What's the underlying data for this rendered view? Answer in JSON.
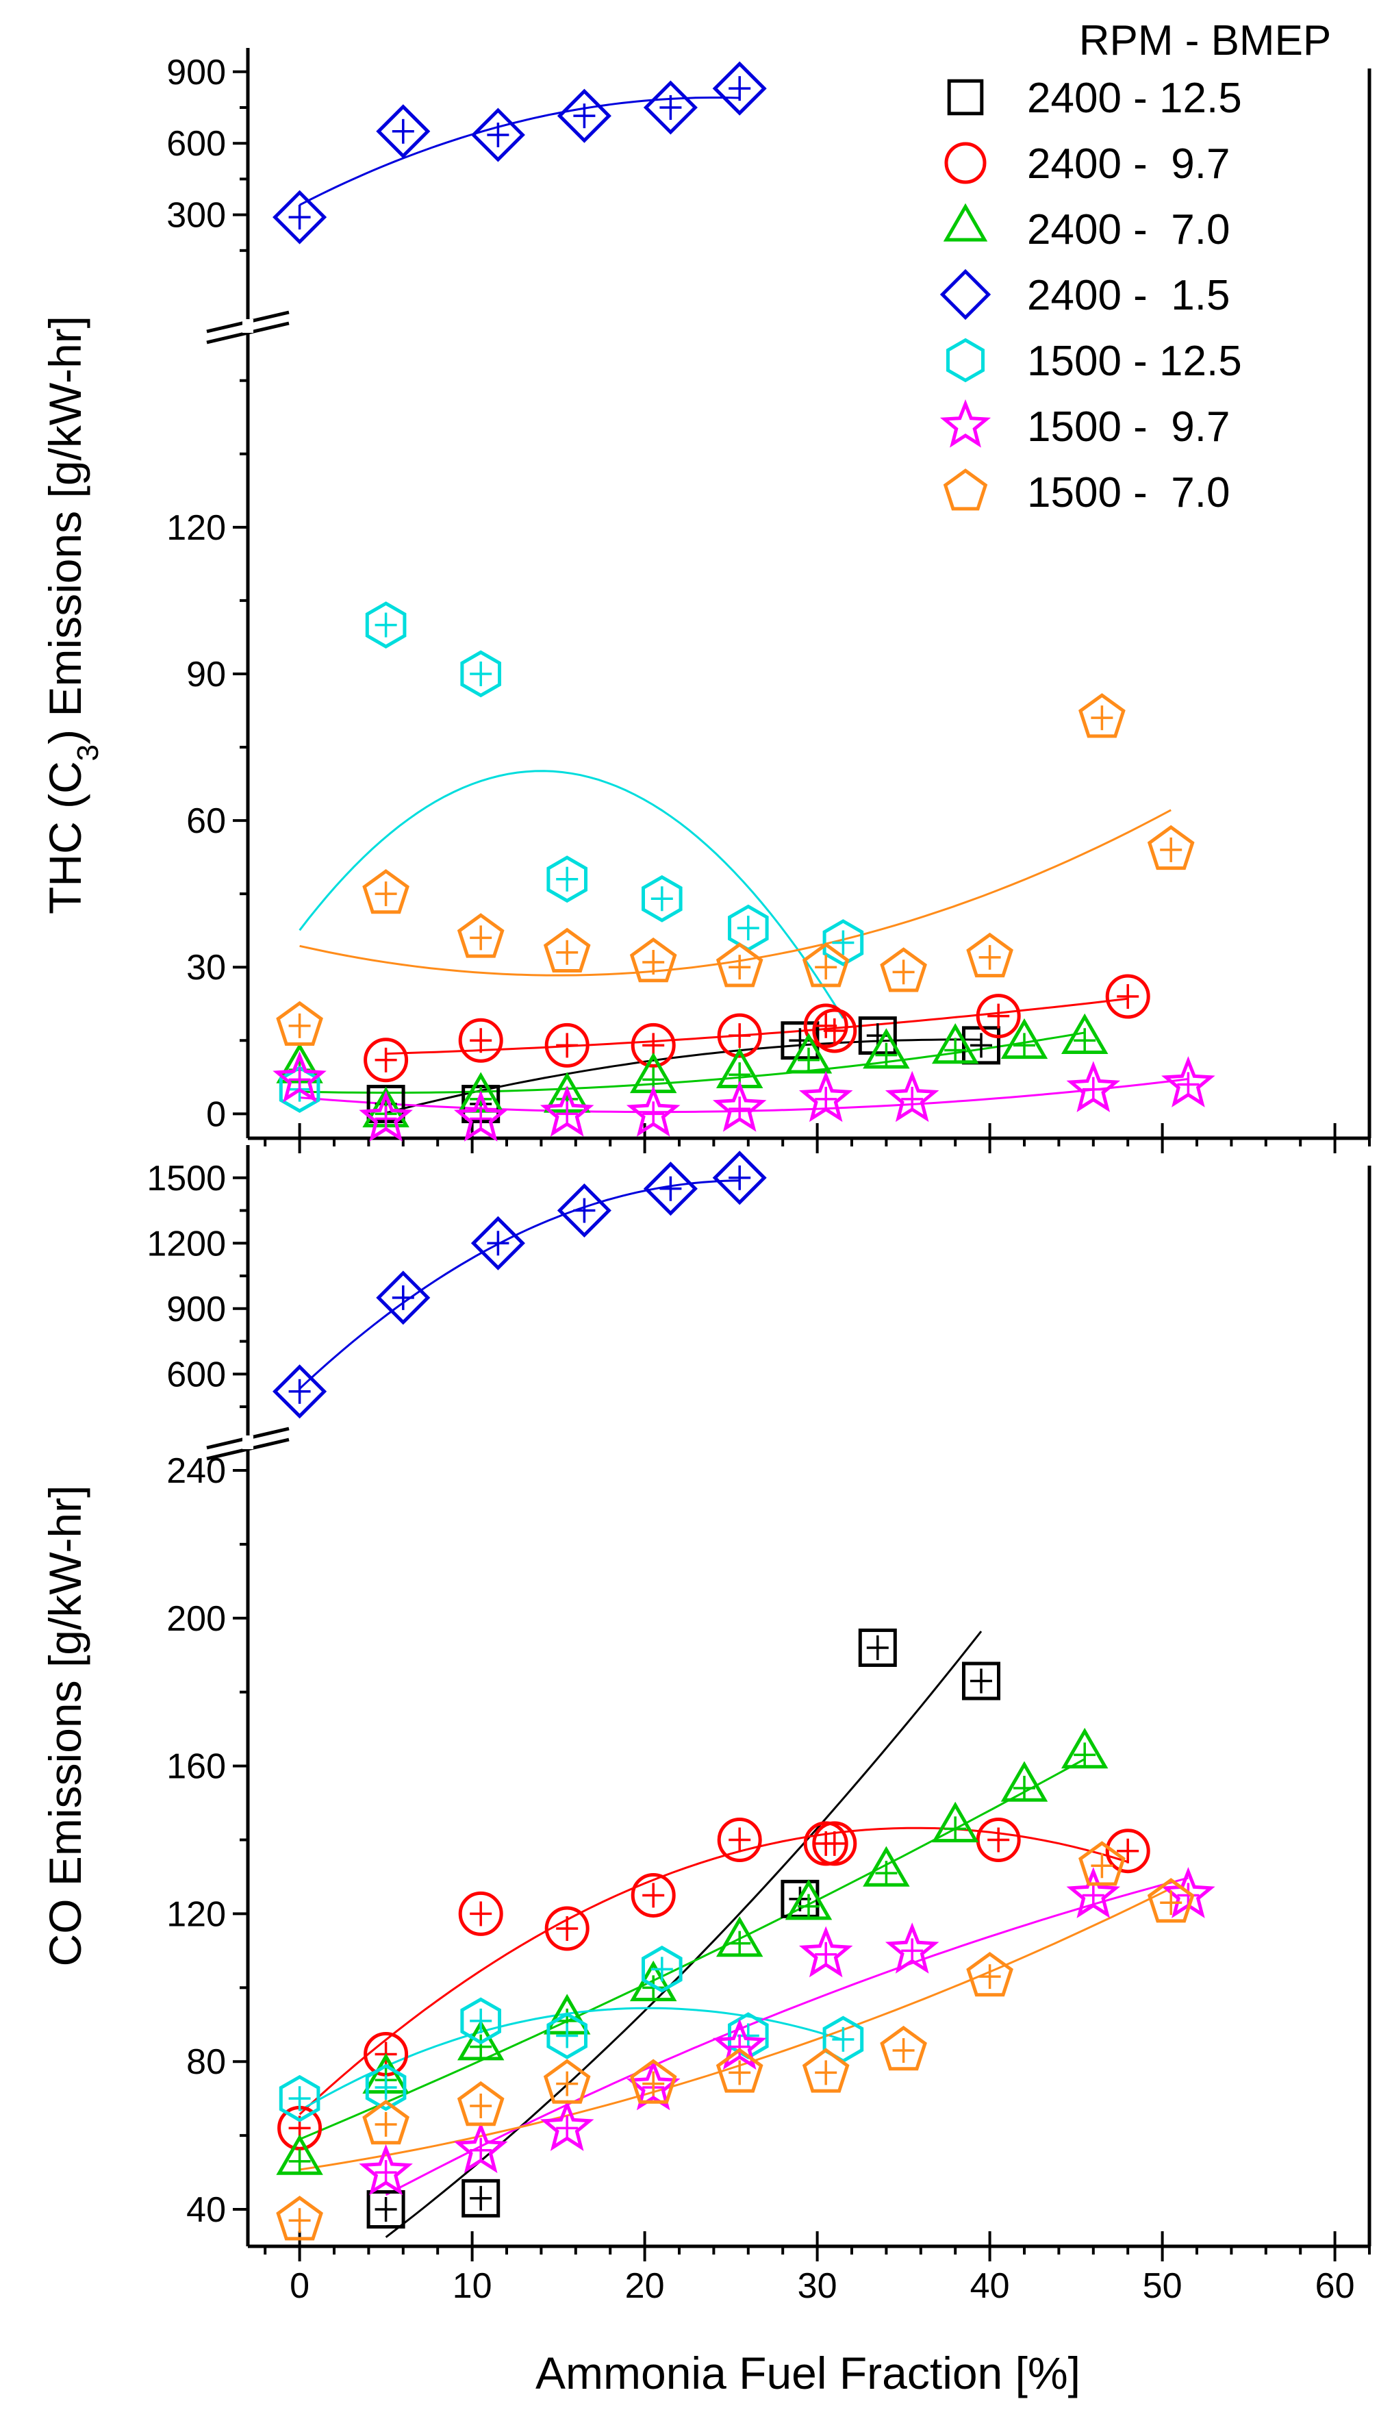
{
  "chart_data": [
    {
      "type": "scatter",
      "panel": "top",
      "ylabel": "THC (C3) Emissions [g/kW-hr]",
      "ylabel_pre": "THC (C",
      "ylabel_sub": "3",
      "ylabel_post": ") Emissions [g/kW-hr]",
      "xlim": [
        -3,
        62
      ],
      "ylim_lower": [
        -5,
        155
      ],
      "ylim_upper": [
        0,
        1000
      ],
      "broken_axis": true,
      "yticks_lower": [
        0,
        30,
        60,
        90,
        120
      ],
      "yticks_upper": [
        300,
        600,
        900
      ],
      "legend_title": "RPM - BMEP",
      "legend_position": "top-right",
      "series": [
        {
          "name": "2400 - 12.5",
          "marker": "square",
          "color": "#000000",
          "x": [
            5,
            10.5,
            29,
            33.5,
            39.5
          ],
          "y": [
            2,
            2,
            15,
            16,
            14
          ]
        },
        {
          "name": "2400 -  9.7",
          "marker": "circle",
          "color": "#ff0000",
          "x": [
            5,
            10.5,
            15.5,
            20.5,
            25.5,
            30.5,
            31,
            40.5,
            48
          ],
          "y": [
            11,
            15,
            14,
            14,
            16,
            18,
            17,
            20,
            24
          ]
        },
        {
          "name": "2400 -  7.0",
          "marker": "triangle",
          "color": "#00c800",
          "x": [
            0,
            5,
            10.5,
            15.5,
            20.5,
            25.5,
            29.5,
            34,
            38,
            42,
            45.5
          ],
          "y": [
            9,
            0,
            3,
            3,
            7,
            8,
            11,
            12,
            13,
            14,
            15
          ]
        },
        {
          "name": "2400 -  1.5",
          "marker": "diamond",
          "color": "#0000dd",
          "x": [
            0,
            6,
            11.5,
            16.5,
            21.5,
            25.5
          ],
          "y": [
            290,
            650,
            635,
            715,
            750,
            830
          ]
        },
        {
          "name": "1500 - 12.5",
          "marker": "hexagon",
          "color": "#00dddd",
          "x": [
            0,
            5,
            10.5,
            15.5,
            21,
            26,
            31.5
          ],
          "y": [
            5,
            100,
            90,
            48,
            44,
            38,
            35
          ]
        },
        {
          "name": "1500 -  9.7",
          "marker": "star",
          "color": "#ff00ff",
          "x": [
            0,
            5,
            10.5,
            15.5,
            20.5,
            25.5,
            30.5,
            35.5,
            46,
            51.5
          ],
          "y": [
            7,
            -1,
            -1,
            0,
            0,
            1,
            3,
            3,
            5,
            6
          ]
        },
        {
          "name": "1500 -  7.0",
          "marker": "pentagon",
          "color": "#ff8c1a",
          "x": [
            0,
            5,
            10.5,
            15.5,
            20.5,
            25.5,
            30.5,
            35,
            40,
            46.5,
            50.5
          ],
          "y": [
            18,
            45,
            36,
            33,
            31,
            30,
            30,
            29,
            32,
            81,
            54
          ]
        }
      ]
    },
    {
      "type": "scatter",
      "panel": "bottom",
      "xlabel": "Ammonia Fuel Fraction [%]",
      "ylabel": "CO Emissions [g/kW-hr]",
      "xlim": [
        -3,
        62
      ],
      "xticks": [
        0,
        10,
        20,
        30,
        40,
        50,
        60
      ],
      "ylim_lower": [
        30,
        245
      ],
      "ylim_upper": [
        400,
        1650
      ],
      "broken_axis": true,
      "yticks_lower": [
        40,
        80,
        120,
        160,
        200,
        240
      ],
      "yticks_upper": [
        600,
        900,
        1200,
        1500
      ],
      "series": [
        {
          "name": "2400 - 12.5",
          "marker": "square",
          "color": "#000000",
          "x": [
            5,
            10.5,
            29,
            33.5,
            39.5
          ],
          "y": [
            40,
            43,
            124,
            192,
            183
          ]
        },
        {
          "name": "2400 -  9.7",
          "marker": "circle",
          "color": "#ff0000",
          "x": [
            0,
            5,
            10.5,
            15.5,
            20.5,
            25.5,
            30.5,
            31,
            40.5,
            48
          ],
          "y": [
            62,
            82,
            120,
            116,
            125,
            140,
            139,
            139,
            140,
            137
          ]
        },
        {
          "name": "2400 -  7.0",
          "marker": "triangle",
          "color": "#00c800",
          "x": [
            0,
            5,
            10.5,
            15.5,
            20.5,
            25.5,
            29.5,
            34,
            38,
            42,
            45.5
          ],
          "y": [
            53,
            75,
            84,
            91,
            100,
            112,
            122,
            131,
            143,
            154,
            163
          ]
        },
        {
          "name": "2400 -  1.5",
          "marker": "diamond",
          "color": "#0000dd",
          "x": [
            0,
            6,
            11.5,
            16.5,
            21.5,
            25.5
          ],
          "y": [
            520,
            950,
            1200,
            1350,
            1450,
            1500
          ]
        },
        {
          "name": "1500 - 12.5",
          "marker": "hexagon",
          "color": "#00dddd",
          "x": [
            0,
            5,
            10.5,
            15.5,
            21,
            26,
            31.5
          ],
          "y": [
            70,
            73,
            91,
            87,
            105,
            87,
            86
          ]
        },
        {
          "name": "1500 -  9.7",
          "marker": "star",
          "color": "#ff00ff",
          "x": [
            5,
            10.5,
            15.5,
            20.5,
            25.5,
            30.5,
            35.5,
            46,
            51.5
          ],
          "y": [
            50,
            56,
            62,
            73,
            84,
            109,
            110,
            125,
            125
          ]
        },
        {
          "name": "1500 -  7.0",
          "marker": "pentagon",
          "color": "#ff8c1a",
          "x": [
            0,
            5,
            10.5,
            15.5,
            20.5,
            25.5,
            30.5,
            35,
            40,
            46.5,
            50.5
          ],
          "y": [
            37,
            63,
            68,
            74,
            74,
            77,
            77,
            83,
            103,
            133,
            123
          ]
        }
      ]
    }
  ]
}
